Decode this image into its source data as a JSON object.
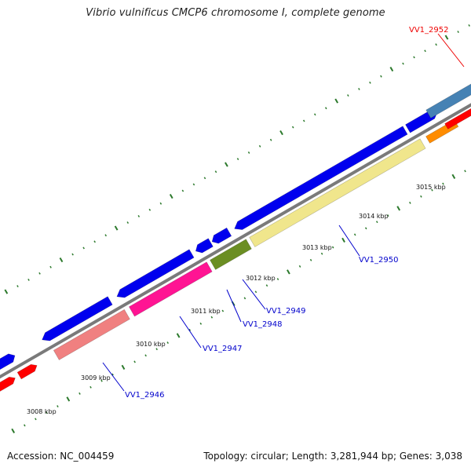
{
  "title": "Vibrio vulnificus CMCP6 chromosome I, complete genome",
  "footer": {
    "accession": "Accession: NC_004459",
    "summary": "Topology: circular; Length: 3,281,944 bp; Genes: 3,038"
  },
  "colors": {
    "backbone": "#7a7a7a",
    "tick": "#2d7a2d",
    "label_blue": "#0000cc",
    "label_red": "#ee0000",
    "cds_blue": "#0000ee",
    "red_feature": "#ff0000",
    "salmon_feature": "#f08080",
    "pink_feature": "#ff1493",
    "olive_feature": "#6b8e23",
    "khaki_feature": "#f0e68c",
    "steel_feature": "#4682b4",
    "orange_feature": "#ff8c00"
  },
  "kbp_labels": [
    "3008 kbp",
    "3009 kbp",
    "3010 kbp",
    "3011 kbp",
    "3012 kbp",
    "3013 kbp",
    "3014 kbp",
    "3015 kbp"
  ],
  "gene_labels": [
    {
      "id": "VV1_2946",
      "color": "blue"
    },
    {
      "id": "VV1_2947",
      "color": "blue"
    },
    {
      "id": "VV1_2948",
      "color": "blue"
    },
    {
      "id": "VV1_2949",
      "color": "blue"
    },
    {
      "id": "VV1_2950",
      "color": "blue"
    },
    {
      "id": "VV1_2952",
      "color": "red"
    }
  ]
}
